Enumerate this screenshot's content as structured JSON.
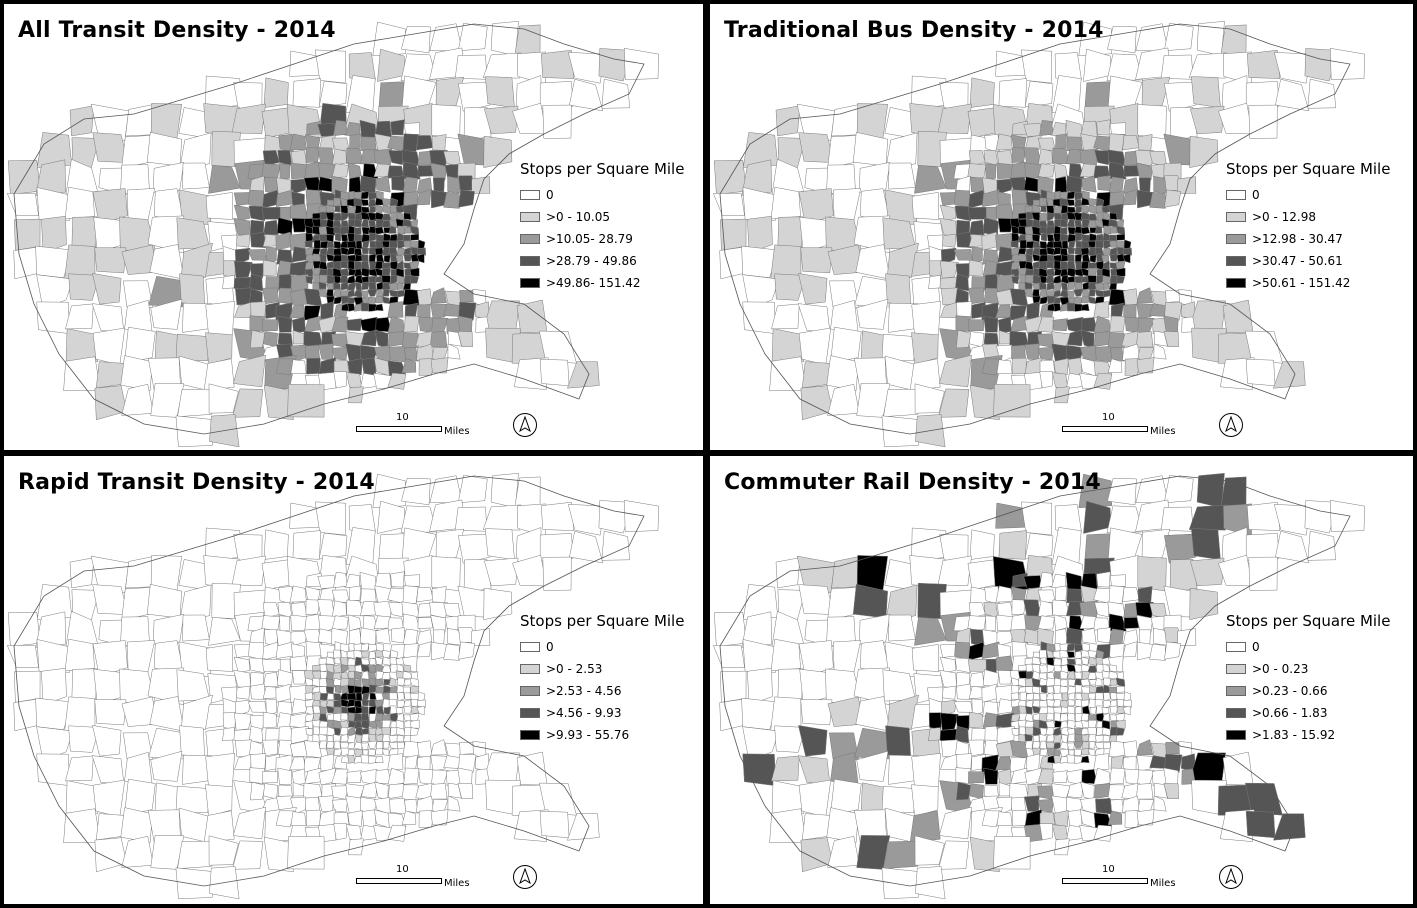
{
  "legend_title": "Stops per Square Mile",
  "scale": {
    "value": "10",
    "unit": "Miles"
  },
  "north_arrow_icon": "north-arrow-icon",
  "panels": [
    {
      "title": "All Transit Density - 2014",
      "legend": [
        {
          "label": "0",
          "color": "#ffffff"
        },
        {
          "label": ">0 - 10.05",
          "color": "#d4d4d4"
        },
        {
          "label": ">10.05- 28.79",
          "color": "#9a9a9a"
        },
        {
          "label": ">28.79 - 49.86",
          "color": "#555555"
        },
        {
          "label": ">49.86- 151.42",
          "color": "#000000"
        }
      ]
    },
    {
      "title": "Traditional Bus Density - 2014",
      "legend": [
        {
          "label": "0",
          "color": "#ffffff"
        },
        {
          "label": ">0 - 12.98",
          "color": "#d4d4d4"
        },
        {
          "label": ">12.98 - 30.47",
          "color": "#9a9a9a"
        },
        {
          "label": ">30.47 - 50.61",
          "color": "#555555"
        },
        {
          "label": ">50.61 - 151.42",
          "color": "#000000"
        }
      ]
    },
    {
      "title": "Rapid Transit Density - 2014",
      "legend": [
        {
          "label": "0",
          "color": "#ffffff"
        },
        {
          "label": ">0 - 2.53",
          "color": "#d4d4d4"
        },
        {
          "label": ">2.53 - 4.56",
          "color": "#9a9a9a"
        },
        {
          "label": ">4.56 - 9.93",
          "color": "#555555"
        },
        {
          "label": ">9.93 - 55.76",
          "color": "#000000"
        }
      ]
    },
    {
      "title": "Commuter Rail Density - 2014",
      "legend": [
        {
          "label": "0",
          "color": "#ffffff"
        },
        {
          "label": ">0 - 0.23",
          "color": "#d4d4d4"
        },
        {
          "label": ">0.23 - 0.66",
          "color": "#9a9a9a"
        },
        {
          "label": ">0.66 - 1.83",
          "color": "#555555"
        },
        {
          "label": ">1.83 - 15.92",
          "color": "#000000"
        }
      ]
    }
  ]
}
